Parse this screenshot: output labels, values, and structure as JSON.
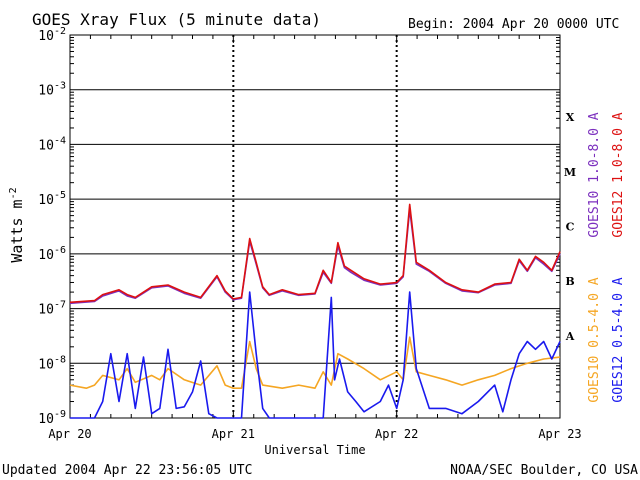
{
  "chart_data": {
    "type": "line",
    "title": "GOES Xray Flux (5 minute data)",
    "begin_label": "Begin:  2004 Apr 20 0000 UTC",
    "xlabel": "Universal Time",
    "ylabel": "Watts m",
    "ylabel_sup": "-2",
    "yscale": "log",
    "ylim": [
      1e-09,
      0.01
    ],
    "y_exponents": [
      -2,
      -3,
      -4,
      -5,
      -6,
      -7,
      -8,
      -9
    ],
    "x_ticks": [
      "Apr 20",
      "Apr 21",
      "Apr 22",
      "Apr 23"
    ],
    "x_unit": "days since Apr 20 0000 UTC",
    "class_labels": [
      {
        "label": "X",
        "level": 0.0001
      },
      {
        "label": "M",
        "level": 1e-05
      },
      {
        "label": "C",
        "level": 1e-06
      },
      {
        "label": "B",
        "level": 1e-07
      },
      {
        "label": "A",
        "level": 1e-08
      }
    ],
    "legend_right": [
      {
        "text": "GOES10 1.0-8.0 A",
        "color": "#7b2fbe"
      },
      {
        "text": "GOES12 1.0-8.0 A",
        "color": "#dd1111"
      }
    ],
    "legend_right2": [
      {
        "text": "GOES10 0.5-4.0 A",
        "color": "#f5a623"
      },
      {
        "text": "GOES12 0.5-4.0 A",
        "color": "#1a1aee"
      }
    ],
    "series": [
      {
        "name": "GOES12 1.0-8.0 A",
        "color": "#dd1111",
        "x": [
          0,
          0.15,
          0.2,
          0.3,
          0.35,
          0.4,
          0.5,
          0.6,
          0.7,
          0.8,
          0.9,
          0.95,
          1.0,
          1.05,
          1.1,
          1.14,
          1.18,
          1.22,
          1.3,
          1.4,
          1.5,
          1.55,
          1.6,
          1.64,
          1.68,
          1.72,
          1.8,
          1.9,
          2.0,
          2.04,
          2.08,
          2.12,
          2.2,
          2.3,
          2.4,
          2.5,
          2.6,
          2.7,
          2.75,
          2.8,
          2.85,
          2.9,
          2.95,
          3.0
        ],
        "y": [
          1.3e-07,
          1.4e-07,
          1.8e-07,
          2.2e-07,
          1.8e-07,
          1.6e-07,
          2.5e-07,
          2.7e-07,
          2e-07,
          1.6e-07,
          4e-07,
          2.1e-07,
          1.5e-07,
          1.6e-07,
          1.9e-06,
          7e-07,
          2.5e-07,
          1.8e-07,
          2.2e-07,
          1.8e-07,
          1.9e-07,
          5e-07,
          3e-07,
          1.6e-06,
          6e-07,
          5e-07,
          3.5e-07,
          2.8e-07,
          3e-07,
          4e-07,
          8e-06,
          7e-07,
          5e-07,
          3e-07,
          2.2e-07,
          2e-07,
          2.8e-07,
          3e-07,
          8e-07,
          5e-07,
          9e-07,
          7e-07,
          5e-07,
          1.1e-06
        ]
      },
      {
        "name": "GOES10 1.0-8.0 A",
        "color": "#7b2fbe",
        "x": [
          0,
          0.15,
          0.2,
          0.3,
          0.35,
          0.4,
          0.5,
          0.6,
          0.7,
          0.8,
          0.9,
          0.95,
          1.0,
          1.05,
          1.1,
          1.14,
          1.18,
          1.22,
          1.3,
          1.4,
          1.5,
          1.55,
          1.6,
          1.64,
          1.68,
          1.72,
          1.8,
          1.9,
          2.0,
          2.04,
          2.08,
          2.12,
          2.2,
          2.3,
          2.4,
          2.5,
          2.6,
          2.7,
          2.75,
          2.8,
          2.85,
          2.9,
          2.95,
          3.0
        ],
        "y": [
          1.25e-07,
          1.35e-07,
          1.7e-07,
          2.1e-07,
          1.7e-07,
          1.55e-07,
          2.4e-07,
          2.6e-07,
          1.9e-07,
          1.55e-07,
          3.8e-07,
          2e-07,
          1.45e-07,
          1.55e-07,
          1.7e-06,
          6.5e-07,
          2.4e-07,
          1.75e-07,
          2.1e-07,
          1.75e-07,
          1.85e-07,
          4.6e-07,
          2.9e-07,
          1.4e-06,
          5.6e-07,
          4.6e-07,
          3.3e-07,
          2.7e-07,
          2.9e-07,
          3.8e-07,
          6.5e-06,
          6.5e-07,
          4.8e-07,
          2.9e-07,
          2.1e-07,
          1.95e-07,
          2.7e-07,
          2.9e-07,
          7.5e-07,
          4.8e-07,
          8.5e-07,
          6.5e-07,
          4.8e-07,
          1e-06
        ]
      },
      {
        "name": "GOES10 0.5-4.0 A",
        "color": "#f5a623",
        "x": [
          0,
          0.1,
          0.15,
          0.2,
          0.3,
          0.35,
          0.4,
          0.5,
          0.55,
          0.6,
          0.7,
          0.8,
          0.9,
          0.95,
          1.0,
          1.05,
          1.1,
          1.14,
          1.18,
          1.3,
          1.4,
          1.5,
          1.55,
          1.6,
          1.64,
          1.7,
          1.8,
          1.9,
          2.0,
          2.04,
          2.08,
          2.12,
          2.2,
          2.3,
          2.4,
          2.5,
          2.6,
          2.7,
          2.8,
          2.9,
          3.0
        ],
        "y": [
          4e-09,
          3.5e-09,
          4e-09,
          6e-09,
          5e-09,
          8e-09,
          4.5e-09,
          6e-09,
          5e-09,
          8e-09,
          5e-09,
          4e-09,
          9e-09,
          4e-09,
          3.5e-09,
          3.5e-09,
          2.5e-08,
          8e-09,
          4e-09,
          3.5e-09,
          4e-09,
          3.5e-09,
          7e-09,
          4e-09,
          1.5e-08,
          1.2e-08,
          8e-09,
          5e-09,
          7e-09,
          5e-09,
          3e-08,
          7e-09,
          6e-09,
          5e-09,
          4e-09,
          5e-09,
          6e-09,
          8e-09,
          1e-08,
          1.2e-08,
          1.3e-08
        ]
      },
      {
        "name": "GOES12 0.5-4.0 A",
        "color": "#1a1aee",
        "x": [
          0,
          0.15,
          0.2,
          0.25,
          0.3,
          0.35,
          0.4,
          0.45,
          0.5,
          0.55,
          0.6,
          0.65,
          0.7,
          0.75,
          0.8,
          0.85,
          0.9,
          0.95,
          1.0,
          1.05,
          1.1,
          1.14,
          1.18,
          1.22,
          1.3,
          1.4,
          1.5,
          1.55,
          1.6,
          1.62,
          1.65,
          1.7,
          1.75,
          1.8,
          1.9,
          1.95,
          2.0,
          2.04,
          2.08,
          2.12,
          2.2,
          2.3,
          2.4,
          2.5,
          2.6,
          2.65,
          2.7,
          2.75,
          2.8,
          2.85,
          2.9,
          2.95,
          3.0
        ],
        "y": [
          1e-09,
          1e-09,
          2e-09,
          1.5e-08,
          2e-09,
          1.5e-08,
          1.5e-09,
          1.3e-08,
          1.2e-09,
          1.5e-09,
          1.8e-08,
          1.5e-09,
          1.6e-09,
          3e-09,
          1.1e-08,
          1.2e-09,
          1e-09,
          1e-09,
          1e-09,
          1e-09,
          2e-07,
          1.5e-08,
          1.5e-09,
          1e-09,
          1e-09,
          1e-09,
          1e-09,
          1e-09,
          1.6e-07,
          5e-09,
          1.2e-08,
          3e-09,
          2e-09,
          1.3e-09,
          2e-09,
          4e-09,
          1.5e-09,
          5e-09,
          2e-07,
          8e-09,
          1.5e-09,
          1.5e-09,
          1.2e-09,
          2e-09,
          4e-09,
          1.3e-09,
          5e-09,
          1.5e-08,
          2.5e-08,
          1.8e-08,
          2.5e-08,
          1.2e-08,
          2.5e-08
        ]
      }
    ]
  },
  "footer": {
    "updated": "Updated 2004 Apr 22 23:56:05 UTC",
    "credit": "NOAA/SEC Boulder, CO USA"
  }
}
